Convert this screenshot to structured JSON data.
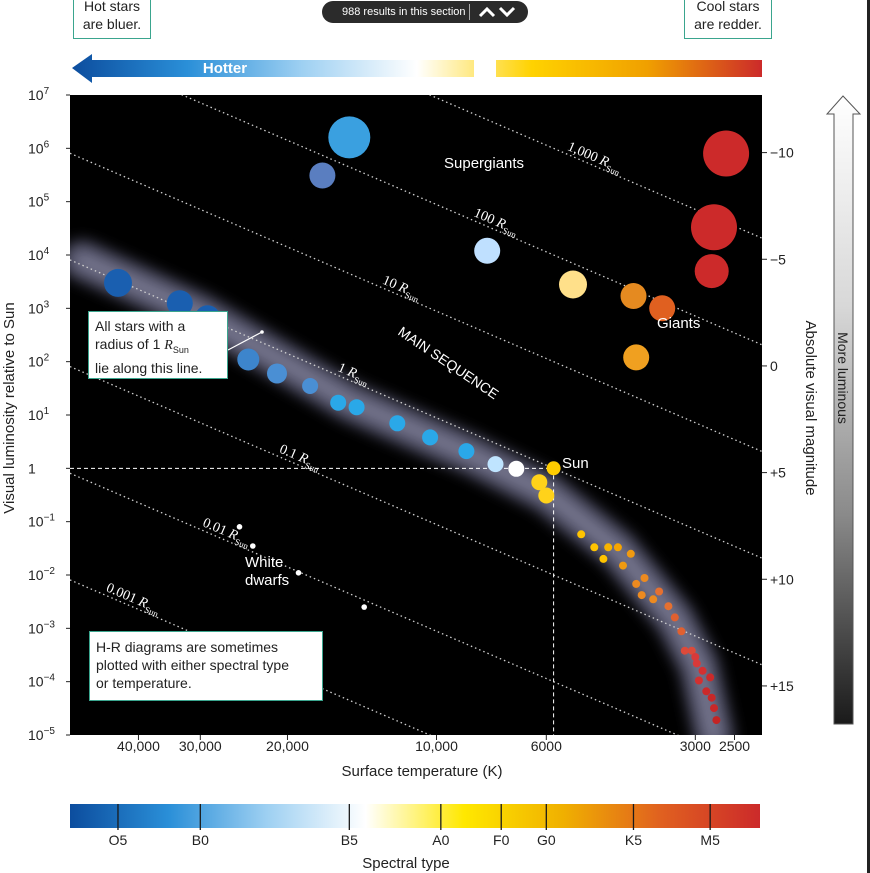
{
  "toolbar": {
    "results_text": "988 results in this section",
    "up_icon": "chevron-up-icon",
    "down_icon": "chevron-down-icon"
  },
  "callouts": {
    "hot": "Hot stars\nare bluer.",
    "cool": "Cool stars\nare redder.",
    "radius_line": "All stars with a\nradius of 1 R_Sun\nlie along this line.",
    "hr_note": "H-R diagrams are sometimes\nplotted with either spectral type\nor temperature."
  },
  "chart_data": {
    "type": "scatter",
    "title": "",
    "xlabel": "Surface temperature (K)",
    "ylabel": "Visual luminosity relative to Sun",
    "y2label": "Absolute visual magnitude",
    "x_scale": "log-reversed",
    "xlim": [
      55000,
      2200
    ],
    "y_scale": "log",
    "ylim": [
      1e-05,
      10000000
    ],
    "x_ticks": [
      {
        "value": 40000,
        "label": "40,000"
      },
      {
        "value": 30000,
        "label": "30,000"
      },
      {
        "value": 20000,
        "label": "20,000"
      },
      {
        "value": 10000,
        "label": "10,000"
      },
      {
        "value": 6000,
        "label": "6000"
      },
      {
        "value": 3000,
        "label": "3000"
      },
      {
        "value": 2500,
        "label": "2500"
      }
    ],
    "y_ticks": [
      {
        "exp": 7,
        "label": "10",
        "sup": "7"
      },
      {
        "exp": 6,
        "label": "10",
        "sup": "6"
      },
      {
        "exp": 5,
        "label": "10",
        "sup": "5"
      },
      {
        "exp": 4,
        "label": "10",
        "sup": "4"
      },
      {
        "exp": 3,
        "label": "10",
        "sup": "3"
      },
      {
        "exp": 2,
        "label": "10",
        "sup": "2"
      },
      {
        "exp": 1,
        "label": "10",
        "sup": "1"
      },
      {
        "exp": 0,
        "label": "1",
        "sup": ""
      },
      {
        "exp": -1,
        "label": "10",
        "sup": "−1"
      },
      {
        "exp": -2,
        "label": "10",
        "sup": "−2"
      },
      {
        "exp": -3,
        "label": "10",
        "sup": "−3"
      },
      {
        "exp": -4,
        "label": "10",
        "sup": "−4"
      },
      {
        "exp": -5,
        "label": "10",
        "sup": "−5"
      }
    ],
    "magnitude_ticks": [
      {
        "mag": -10,
        "label": "−10"
      },
      {
        "mag": -5,
        "label": "−5"
      },
      {
        "mag": 0,
        "label": "0"
      },
      {
        "mag": 5,
        "label": "+5"
      },
      {
        "mag": 10,
        "label": "+10"
      },
      {
        "mag": 15,
        "label": "+15"
      }
    ],
    "radius_lines": [
      {
        "radius": 1000,
        "label": "1,000 ",
        "sub": "Sun"
      },
      {
        "radius": 100,
        "label": "100 ",
        "sub": "Sun"
      },
      {
        "radius": 10,
        "label": "10 ",
        "sub": "Sun"
      },
      {
        "radius": 1,
        "label": "1 ",
        "sub": "Sun"
      },
      {
        "radius": 0.1,
        "label": "0.1 ",
        "sub": "Sun"
      },
      {
        "radius": 0.01,
        "label": "0.01 ",
        "sub": "Sun"
      },
      {
        "radius": 0.001,
        "label": "0.001 ",
        "sub": "Sun"
      }
    ],
    "radius_symbol": "R",
    "region_labels": {
      "supergiants": "Supergiants",
      "giants": "Giants",
      "main_sequence": "MAIN SEQUENCE",
      "white_dwarfs": "White\ndwarfs",
      "sun": "Sun"
    },
    "sun": {
      "temp": 5800,
      "lum": 1
    },
    "stars": [
      {
        "group": "main-sequence",
        "temp": 44000,
        "lum": 3000,
        "size": 14,
        "color": "#1a5fb0"
      },
      {
        "group": "main-sequence",
        "temp": 33000,
        "lum": 1250,
        "size": 13,
        "color": "#1a5fb0"
      },
      {
        "group": "main-sequence",
        "temp": 29000,
        "lum": 650,
        "size": 13,
        "color": "#1a5fb0"
      },
      {
        "group": "main-sequence",
        "temp": 24000,
        "lum": 110,
        "size": 11,
        "color": "#3d85cc"
      },
      {
        "group": "main-sequence",
        "temp": 21000,
        "lum": 60,
        "size": 10,
        "color": "#4a8fd4"
      },
      {
        "group": "main-sequence",
        "temp": 18000,
        "lum": 35,
        "size": 8,
        "color": "#4a8fd4"
      },
      {
        "group": "main-sequence",
        "temp": 15800,
        "lum": 17,
        "size": 8,
        "color": "#2aa8e8"
      },
      {
        "group": "main-sequence",
        "temp": 14500,
        "lum": 14,
        "size": 8,
        "color": "#2aa8e8"
      },
      {
        "group": "main-sequence",
        "temp": 12000,
        "lum": 7,
        "size": 8,
        "color": "#2aa8e8"
      },
      {
        "group": "main-sequence",
        "temp": 10300,
        "lum": 3.8,
        "size": 8,
        "color": "#2aa8e8"
      },
      {
        "group": "main-sequence",
        "temp": 8700,
        "lum": 2.1,
        "size": 8,
        "color": "#2aa8e8"
      },
      {
        "group": "main-sequence",
        "temp": 7600,
        "lum": 1.2,
        "size": 8,
        "color": "#bfe4ff"
      },
      {
        "group": "main-sequence",
        "temp": 6900,
        "lum": 0.98,
        "size": 8,
        "color": "#ffffff"
      },
      {
        "group": "main-sequence",
        "temp": 6200,
        "lum": 0.55,
        "size": 8,
        "color": "#ffd21a"
      },
      {
        "group": "main-sequence",
        "temp": 6000,
        "lum": 0.31,
        "size": 8,
        "color": "#ffd21a"
      },
      {
        "group": "main-sequence",
        "temp": 5800,
        "lum": 1,
        "size": 7,
        "color": "#ffcc00"
      },
      {
        "group": "lower-main-sequence",
        "temp": 5100,
        "lum": 0.058,
        "size": 4,
        "color": "#ffc400"
      },
      {
        "group": "lower-main-sequence",
        "temp": 4800,
        "lum": 0.033,
        "size": 4,
        "color": "#ffc400"
      },
      {
        "group": "lower-main-sequence",
        "temp": 4600,
        "lum": 0.02,
        "size": 4,
        "color": "#ffc400"
      },
      {
        "group": "lower-main-sequence",
        "temp": 4500,
        "lum": 0.033,
        "size": 4,
        "color": "#f7b400"
      },
      {
        "group": "lower-main-sequence",
        "temp": 4300,
        "lum": 0.033,
        "size": 4,
        "color": "#f7a500"
      },
      {
        "group": "lower-main-sequence",
        "temp": 4200,
        "lum": 0.015,
        "size": 4,
        "color": "#f09a10"
      },
      {
        "group": "lower-main-sequence",
        "temp": 4050,
        "lum": 0.025,
        "size": 4,
        "color": "#f09a10"
      },
      {
        "group": "lower-main-sequence",
        "temp": 3950,
        "lum": 0.0068,
        "size": 4,
        "color": "#ec8a20"
      },
      {
        "group": "lower-main-sequence",
        "temp": 3850,
        "lum": 0.0042,
        "size": 4,
        "color": "#ec8a20"
      },
      {
        "group": "lower-main-sequence",
        "temp": 3800,
        "lum": 0.0088,
        "size": 4,
        "color": "#ec8a20"
      },
      {
        "group": "lower-main-sequence",
        "temp": 3650,
        "lum": 0.0035,
        "size": 4,
        "color": "#ec8a20"
      },
      {
        "group": "lower-main-sequence",
        "temp": 3550,
        "lum": 0.0049,
        "size": 4,
        "color": "#e57030"
      },
      {
        "group": "lower-main-sequence",
        "temp": 3400,
        "lum": 0.0026,
        "size": 4,
        "color": "#e57030"
      },
      {
        "group": "lower-main-sequence",
        "temp": 3300,
        "lum": 0.0016,
        "size": 4,
        "color": "#e06030"
      },
      {
        "group": "lower-main-sequence",
        "temp": 3200,
        "lum": 0.00088,
        "size": 4,
        "color": "#e06030"
      },
      {
        "group": "lower-main-sequence",
        "temp": 3150,
        "lum": 0.00038,
        "size": 4,
        "color": "#dc4a3a"
      },
      {
        "group": "lower-main-sequence",
        "temp": 3050,
        "lum": 0.00038,
        "size": 4,
        "color": "#dc4a3a"
      },
      {
        "group": "lower-main-sequence",
        "temp": 3000,
        "lum": 0.00029,
        "size": 4,
        "color": "#d83a3a"
      },
      {
        "group": "lower-main-sequence",
        "temp": 2980,
        "lum": 0.00022,
        "size": 4,
        "color": "#d83a3a"
      },
      {
        "group": "lower-main-sequence",
        "temp": 2950,
        "lum": 0.000105,
        "size": 4,
        "color": "#d33030"
      },
      {
        "group": "lower-main-sequence",
        "temp": 2900,
        "lum": 0.00016,
        "size": 4,
        "color": "#d33030"
      },
      {
        "group": "lower-main-sequence",
        "temp": 2850,
        "lum": 6.6e-05,
        "size": 4,
        "color": "#cc2a2a"
      },
      {
        "group": "lower-main-sequence",
        "temp": 2800,
        "lum": 0.00012,
        "size": 4,
        "color": "#cc2a2a"
      },
      {
        "group": "lower-main-sequence",
        "temp": 2780,
        "lum": 5e-05,
        "size": 4,
        "color": "#c82828"
      },
      {
        "group": "lower-main-sequence",
        "temp": 2750,
        "lum": 3.2e-05,
        "size": 4,
        "color": "#c82828"
      },
      {
        "group": "lower-main-sequence",
        "temp": 2720,
        "lum": 1.9e-05,
        "size": 4,
        "color": "#c42424"
      },
      {
        "group": "supergiants",
        "temp": 15000,
        "lum": 1600000,
        "size": 21,
        "color": "#3aa0e0"
      },
      {
        "group": "supergiants",
        "temp": 17000,
        "lum": 310000,
        "size": 13,
        "color": "#5a7ec0"
      },
      {
        "group": "supergiants",
        "temp": 7900,
        "lum": 12000,
        "size": 13,
        "color": "#bfe0ff"
      },
      {
        "group": "supergiants",
        "temp": 2600,
        "lum": 800000,
        "size": 23,
        "color": "#cc2a2a"
      },
      {
        "group": "supergiants",
        "temp": 2750,
        "lum": 33000,
        "size": 23,
        "color": "#cc2a2a"
      },
      {
        "group": "supergiants",
        "temp": 2780,
        "lum": 5000,
        "size": 17,
        "color": "#cc2a2a"
      },
      {
        "group": "giants",
        "temp": 5300,
        "lum": 2800,
        "size": 14,
        "color": "#ffe08a"
      },
      {
        "group": "giants",
        "temp": 4000,
        "lum": 1700,
        "size": 13,
        "color": "#e58a20"
      },
      {
        "group": "giants",
        "temp": 3500,
        "lum": 1000,
        "size": 13,
        "color": "#e06020"
      },
      {
        "group": "giants",
        "temp": 3950,
        "lum": 120,
        "size": 13,
        "color": "#f0a020"
      },
      {
        "group": "white-dwarfs",
        "temp": 25000,
        "lum": 0.08,
        "size": 2.8,
        "color": "#ffffff"
      },
      {
        "group": "white-dwarfs",
        "temp": 23500,
        "lum": 0.035,
        "size": 2.8,
        "color": "#ffffff"
      },
      {
        "group": "white-dwarfs",
        "temp": 19000,
        "lum": 0.011,
        "size": 2.8,
        "color": "#ffffff"
      },
      {
        "group": "white-dwarfs",
        "temp": 14000,
        "lum": 0.0025,
        "size": 2.8,
        "color": "#ffffff"
      }
    ],
    "top_bar": {
      "label": "Hotter",
      "colors": [
        "#0c4d9e",
        "#2a8fd8",
        "#9ed0f2",
        "#ffffff",
        "#ffd200",
        "#f0a000",
        "#cc2a2a"
      ]
    },
    "spectral_bar": {
      "label": "Spectral type",
      "ticks": [
        {
          "label": "O5",
          "temp": 44000
        },
        {
          "label": "B0",
          "temp": 30000
        },
        {
          "label": "B5",
          "temp": 15000
        },
        {
          "label": "A0",
          "temp": 9800
        },
        {
          "label": "F0",
          "temp": 7400
        },
        {
          "label": "G0",
          "temp": 6000
        },
        {
          "label": "K5",
          "temp": 4000
        },
        {
          "label": "M5",
          "temp": 2800
        }
      ],
      "colors": [
        "#0c4d9e",
        "#2a8fd8",
        "#9ed0f2",
        "#ffffff",
        "#ffe800",
        "#f0b000",
        "#e06020",
        "#cc2a2a"
      ]
    },
    "luminosity_arrow": {
      "label": "More luminous",
      "colors": [
        "#ffffff",
        "#d8d8d8",
        "#8a8a8a",
        "#1a1a1a"
      ]
    }
  }
}
